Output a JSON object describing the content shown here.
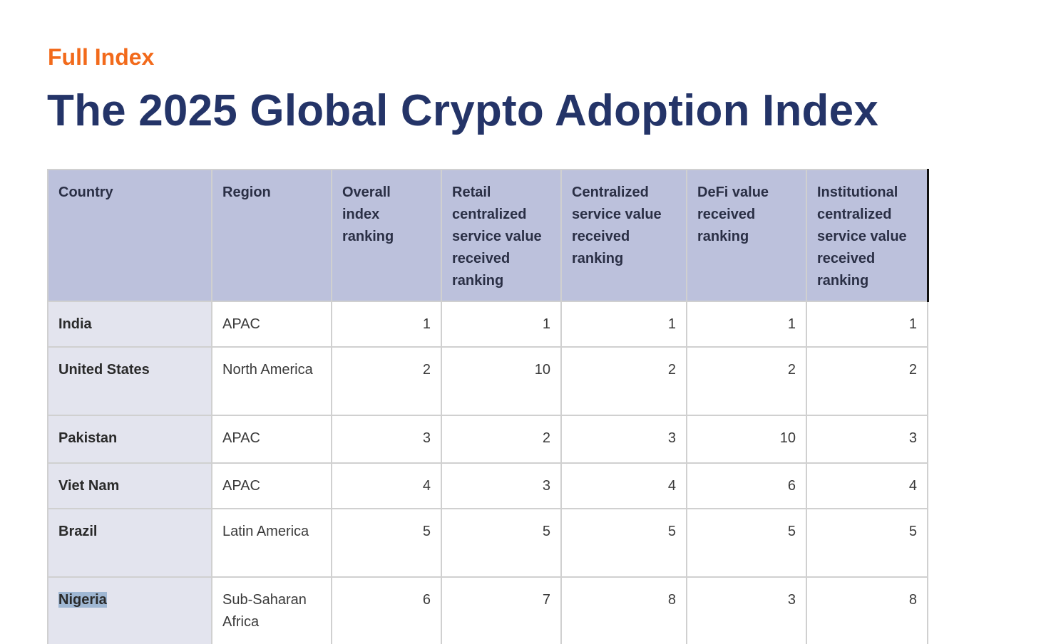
{
  "header": {
    "kicker": "Full Index",
    "title": "The 2025 Global Crypto Adoption Index"
  },
  "table": {
    "columns": [
      "Country",
      "Region",
      "Overall index ranking",
      "Retail centralized service value received ranking",
      "Centralized service value received ranking",
      "DeFi value received ranking",
      "Institutional centralized service value received ranking"
    ],
    "rows": [
      {
        "country": "India",
        "region": "APAC",
        "overall": "1",
        "retail": "1",
        "centralized": "1",
        "defi": "1",
        "institutional": "1"
      },
      {
        "country": "United States",
        "region": "North America",
        "overall": "2",
        "retail": "10",
        "centralized": "2",
        "defi": "2",
        "institutional": "2"
      },
      {
        "country": "Pakistan",
        "region": "APAC",
        "overall": "3",
        "retail": "2",
        "centralized": "3",
        "defi": "10",
        "institutional": "3"
      },
      {
        "country": "Viet Nam",
        "region": "APAC",
        "overall": "4",
        "retail": "3",
        "centralized": "4",
        "defi": "6",
        "institutional": "4"
      },
      {
        "country": "Brazil",
        "region": "Latin America",
        "overall": "5",
        "retail": "5",
        "centralized": "5",
        "defi": "5",
        "institutional": "5"
      },
      {
        "country": "Nigeria",
        "region": "Sub-Saharan Africa",
        "overall": "6",
        "retail": "7",
        "centralized": "8",
        "defi": "3",
        "institutional": "8"
      }
    ]
  },
  "colors": {
    "kicker": "#f26a1b",
    "title": "#243468",
    "header_bg": "#bcc1dc",
    "country_bg": "#e3e4ee",
    "selection_highlight": "#9fb7d3"
  }
}
